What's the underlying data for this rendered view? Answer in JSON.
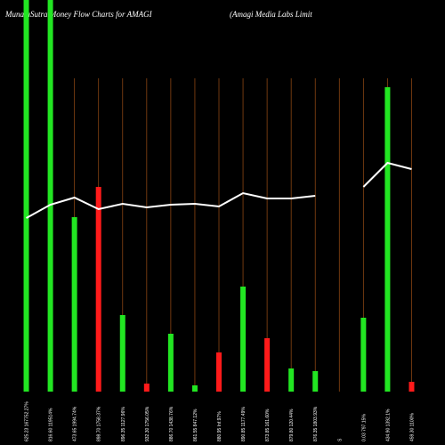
{
  "chart_data": {
    "type": "bar",
    "title": "MunafaSutra  Money Flow  Charts for AMAGI",
    "subtitle": "(Amagi  Media  Labs Limit",
    "categories": [
      "625.23 167752.27%",
      "816.60 119514%",
      "473.65 1994.74%",
      "898.70 1758.37%",
      "896.35 1127.96%",
      "932.30 1756.05%",
      "886.70 1438.76%",
      "861.55 847.12%",
      "880.95 Inf.97%",
      "890.85 1177.49%",
      "873.85 161.60%",
      "879.80 120.44%",
      "876.35 1803.93%",
      "S",
      "0.03 797.15%",
      "434.90 1392.1%",
      "459.30 1100%"
    ],
    "values": [
      440,
      440,
      196,
      230,
      86,
      9,
      65,
      7,
      44,
      118,
      60,
      26,
      23,
      null,
      83,
      342,
      11
    ],
    "colors": [
      "#22e622",
      "#22e622",
      "#22e622",
      "#ff1a1a",
      "#22e622",
      "#ff1a1a",
      "#22e622",
      "#22e622",
      "#ff1a1a",
      "#22e622",
      "#ff1a1a",
      "#22e622",
      "#22e622",
      null,
      "#22e622",
      "#22e622",
      "#ff1a1a"
    ],
    "line": {
      "color": "#ffffff",
      "axis": "y2",
      "values": [
        195,
        210,
        218,
        205,
        211,
        207,
        210,
        211,
        208,
        223,
        217,
        217,
        220,
        null,
        230,
        257,
        250
      ]
    },
    "ylim": [
      0,
      440
    ],
    "y2lim": [
      0,
      440
    ],
    "grid_color": "#8b4513"
  }
}
